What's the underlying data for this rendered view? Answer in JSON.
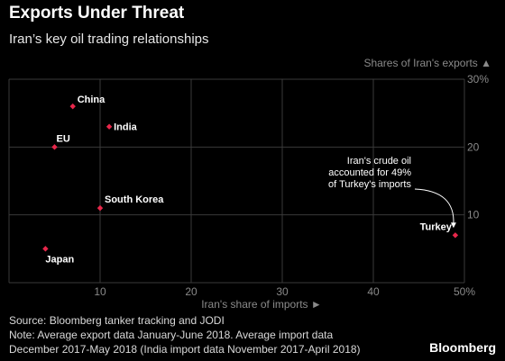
{
  "header": {
    "title": "Exports Under Threat",
    "subtitle": "Iran’s key oil trading relationships"
  },
  "footer": {
    "source": "Source: Bloomberg tanker tracking and JODI",
    "note_line1": "Note: Average export data January-June 2018. Average import data",
    "note_line2": "December 2017-May 2018 (India import data November 2017-April 2018)",
    "brand": "Bloomberg"
  },
  "colors": {
    "background": "#000000",
    "grid": "#3a3a3a",
    "point": "#e8274b",
    "axis_text": "#8a8a8a"
  },
  "chart_data": {
    "type": "scatter",
    "xlabel": "Iran's share of imports ►",
    "ylabel": "Shares of Iran's exports ▲",
    "xlim": [
      0,
      50
    ],
    "ylim": [
      0,
      30
    ],
    "x_ticks": [
      "10",
      "20",
      "30",
      "40",
      "50%"
    ],
    "y_ticks": [
      "10",
      "20",
      "30%"
    ],
    "grid": true,
    "points": [
      {
        "label": "China",
        "x": 7,
        "y": 26
      },
      {
        "label": "India",
        "x": 11,
        "y": 23
      },
      {
        "label": "EU",
        "x": 5,
        "y": 20
      },
      {
        "label": "South Korea",
        "x": 10,
        "y": 11
      },
      {
        "label": "Japan",
        "x": 4,
        "y": 5
      },
      {
        "label": "Turkey",
        "x": 49,
        "y": 7
      }
    ],
    "annotation": {
      "lines": [
        "Iran's crude oil",
        "accounted for 49%",
        "of Turkey's imports"
      ]
    }
  }
}
